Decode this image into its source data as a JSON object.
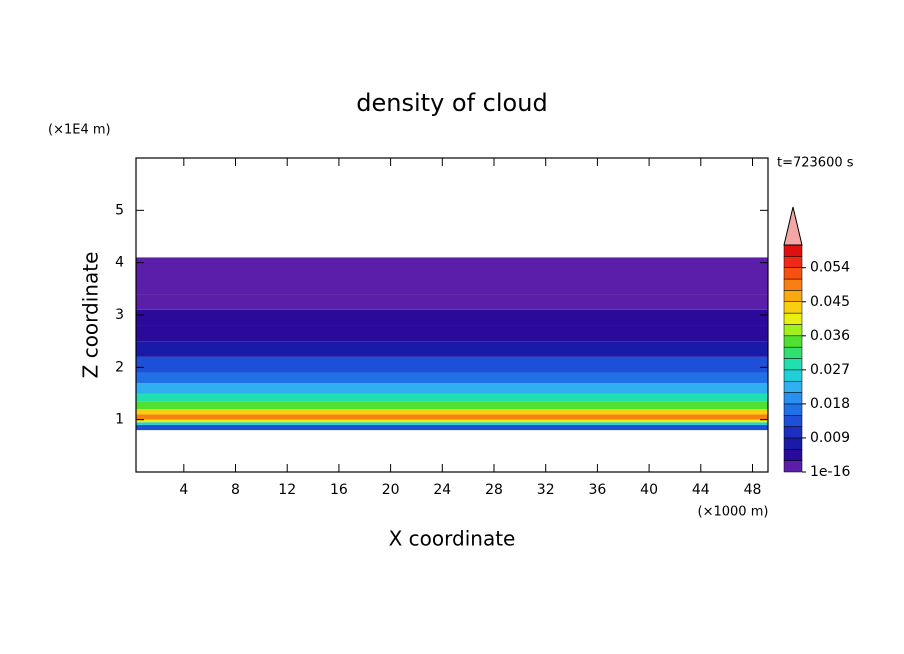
{
  "chart_data": {
    "type": "contour",
    "title": "density of cloud",
    "xlabel": "X coordinate",
    "ylabel": "Z coordinate",
    "x_unit": "(×1000 m)",
    "y_unit": "(×1E4 m)",
    "annotation": "t=723600 s",
    "xlim": [
      0.3,
      49.2
    ],
    "xticks": [
      4,
      8,
      12,
      16,
      20,
      24,
      28,
      32,
      36,
      40,
      44,
      48
    ],
    "ylim": [
      0,
      6
    ],
    "yticks": [
      1,
      2,
      3,
      4,
      5
    ],
    "field": {
      "z_edges": [
        0.8,
        0.9,
        0.95,
        1.0,
        1.1,
        1.2,
        1.35,
        1.5,
        1.7,
        1.9,
        2.2,
        2.5,
        2.8,
        3.1,
        3.4,
        4.1
      ],
      "values": [
        0.012,
        0.025,
        0.04,
        0.05,
        0.042,
        0.033,
        0.027,
        0.022,
        0.016,
        0.012,
        0.008,
        0.005,
        0.003,
        0.001,
        0.0005
      ]
    },
    "colorbar": {
      "levels": [
        1e-16,
        0.003,
        0.006,
        0.009,
        0.012,
        0.015,
        0.018,
        0.021,
        0.024,
        0.027,
        0.03,
        0.033,
        0.036,
        0.039,
        0.042,
        0.045,
        0.048,
        0.051,
        0.054,
        0.057,
        0.06
      ],
      "colors": [
        "#5a1ea8",
        "#2a0a9a",
        "#1a1aa8",
        "#1e2ec0",
        "#1e4fd8",
        "#2070e8",
        "#2890f0",
        "#30b0f0",
        "#20d0d8",
        "#20e0b0",
        "#30e070",
        "#50e030",
        "#a0f020",
        "#e8f010",
        "#f8d010",
        "#f8a810",
        "#f88010",
        "#f85010",
        "#f02818",
        "#e01010"
      ],
      "extend_color": "#f4a6a6",
      "ticks": [
        {
          "value": 1e-16,
          "label": "1e-16"
        },
        0.009,
        0.018,
        0.027,
        0.036,
        0.045,
        0.054
      ]
    }
  }
}
